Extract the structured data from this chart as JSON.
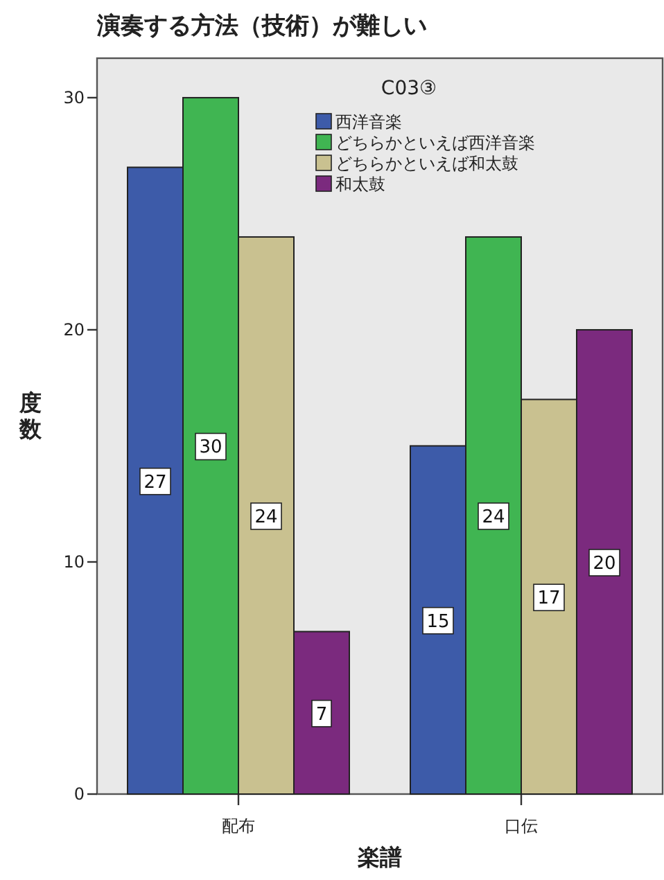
{
  "chart_data": {
    "type": "bar",
    "title": "演奏する方法（技術）が難しい",
    "xlabel": "楽譜",
    "ylabel": "度数",
    "legend_title": "C03③",
    "legend": "top right",
    "data_labels": true,
    "categories": [
      "配布",
      "口伝"
    ],
    "series": [
      {
        "name": "西洋音楽",
        "color": "#3d5ba9",
        "values": [
          27,
          15
        ]
      },
      {
        "name": "どちらかといえば西洋音楽",
        "color": "#40b552",
        "values": [
          30,
          24
        ]
      },
      {
        "name": "どちらかといえば和太鼓",
        "color": "#c9c190",
        "values": [
          24,
          17
        ]
      },
      {
        "name": "和太鼓",
        "color": "#7b2a7e",
        "values": [
          7,
          20
        ]
      }
    ],
    "ylim": [
      0,
      31.7
    ],
    "yticks": [
      0,
      10,
      20,
      30
    ]
  }
}
